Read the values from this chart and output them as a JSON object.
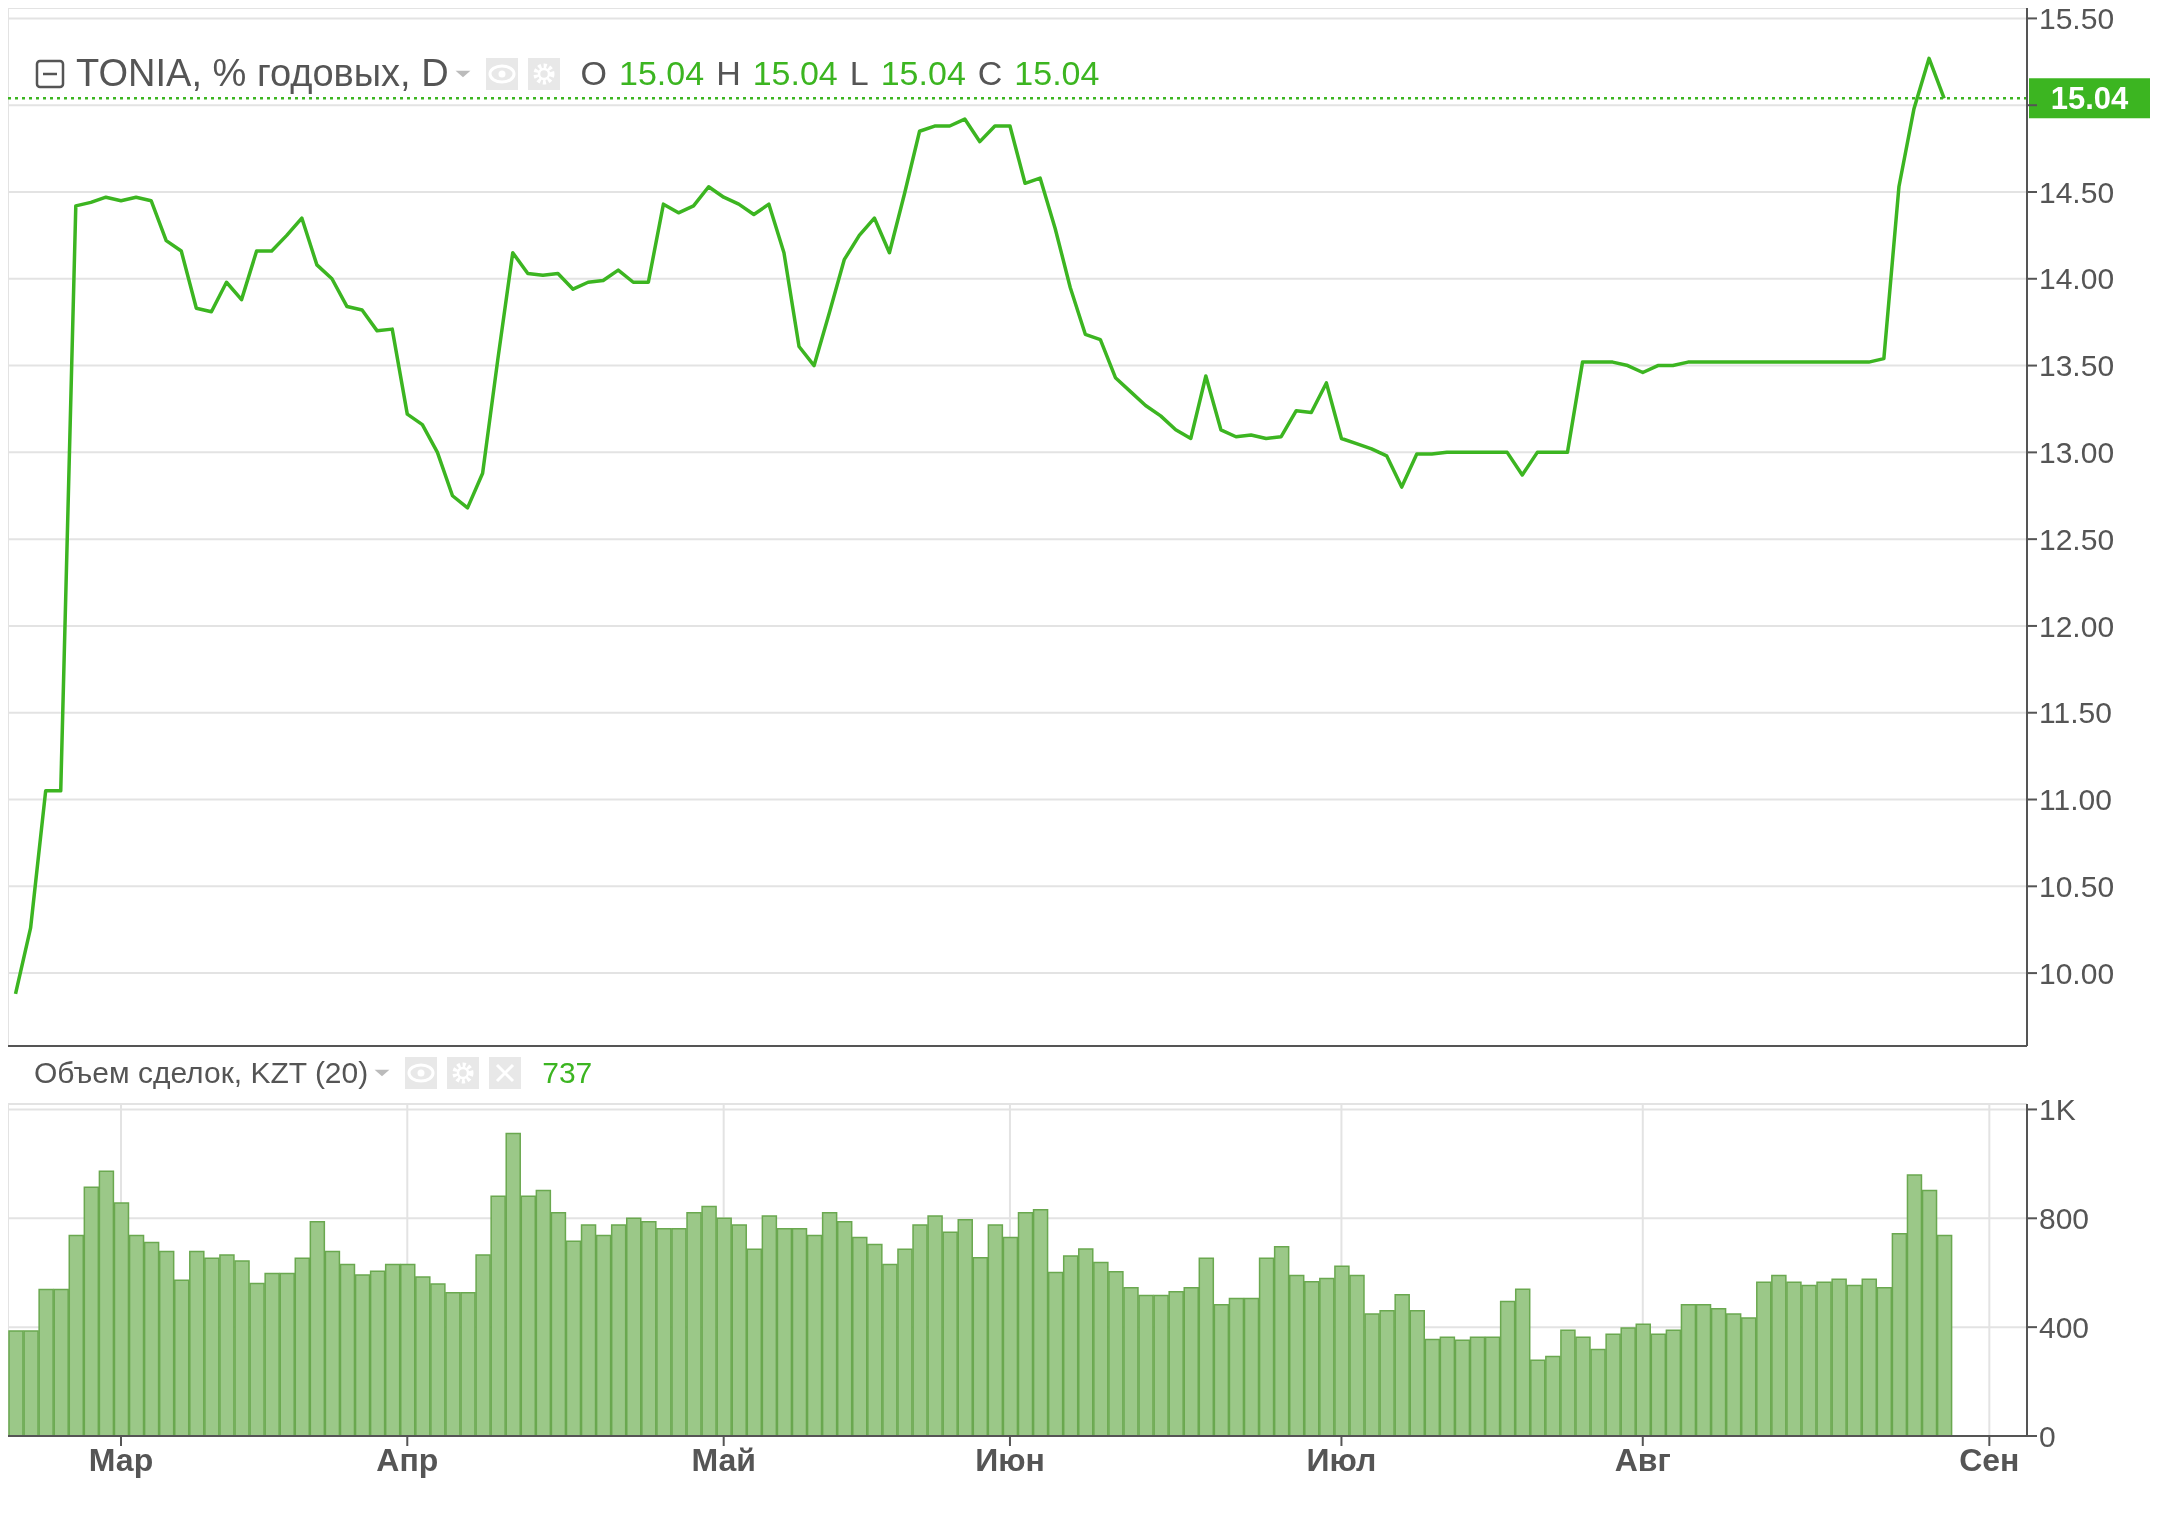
{
  "chart_data": [
    {
      "type": "line",
      "title": "TONIA, % годовых, D",
      "annotations": [
        "O 15.04 H 15.04 L 15.04 C 15.04"
      ],
      "categories": [
        null,
        null,
        null,
        null,
        null,
        null,
        null,
        null,
        null,
        null,
        null,
        null,
        null,
        null,
        null,
        null,
        null,
        null,
        null,
        null,
        null,
        null,
        null,
        null,
        null,
        null,
        null,
        null,
        null,
        null,
        null,
        null,
        null,
        null,
        null,
        null,
        null,
        null,
        null,
        null,
        null,
        null,
        null,
        null,
        null,
        null,
        null,
        null,
        null,
        null,
        null,
        null,
        null,
        null,
        null,
        null,
        null,
        null,
        null,
        null,
        null,
        null,
        null,
        null,
        null,
        null,
        null,
        null,
        null,
        null,
        null,
        null,
        null,
        null,
        null,
        null,
        null,
        null,
        null,
        null,
        null,
        null,
        null,
        null,
        null,
        null,
        null,
        null,
        null,
        null,
        null,
        null,
        null,
        null,
        null,
        null,
        null,
        null,
        null,
        null,
        null,
        null,
        null,
        null,
        null,
        null,
        null,
        null,
        null,
        null,
        null,
        null,
        null,
        null,
        null,
        null,
        null,
        null,
        null,
        null,
        null,
        null,
        null,
        null,
        null,
        null,
        null,
        null,
        null,
        null,
        null,
        null,
        null,
        null
      ],
      "series": [
        {
          "color": "#3cb521",
          "values": [
            9.88,
            10.26,
            11.05,
            11.05,
            14.42,
            14.44,
            14.47,
            14.45,
            14.47,
            14.45,
            14.22,
            14.16,
            13.83,
            13.81,
            13.98,
            13.88,
            14.16,
            14.16,
            14.25,
            14.35,
            14.08,
            14.0,
            13.84,
            13.82,
            13.7,
            13.71,
            13.22,
            13.16,
            13.0,
            12.75,
            12.68,
            12.88,
            13.53,
            14.15,
            14.03,
            14.02,
            14.03,
            13.94,
            13.98,
            13.99,
            14.05,
            13.98,
            13.98,
            14.43,
            14.38,
            14.42,
            14.53,
            14.47,
            14.43,
            14.37,
            14.43,
            14.15,
            13.61,
            13.5,
            13.8,
            14.11,
            14.25,
            14.35,
            14.15,
            14.49,
            14.85,
            14.88,
            14.88,
            14.92,
            14.79,
            14.88,
            14.88,
            14.55,
            14.58,
            14.29,
            13.95,
            13.68,
            13.65,
            13.43,
            13.35,
            13.27,
            13.21,
            13.13,
            13.08,
            13.44,
            13.13,
            13.09,
            13.1,
            13.08,
            13.09,
            13.24,
            13.23,
            13.4,
            13.08,
            13.05,
            13.02,
            12.98,
            12.8,
            12.99,
            12.99,
            13.0,
            13.0,
            13.0,
            13.0,
            13.0,
            12.87,
            13.0,
            13.0,
            13.0,
            13.52,
            13.52,
            13.52,
            13.5,
            13.46,
            13.5,
            13.5,
            13.52,
            13.52,
            13.52,
            13.52,
            13.52,
            13.52,
            13.52,
            13.52,
            13.52,
            13.52,
            13.52,
            13.52,
            13.52,
            13.54,
            14.53,
            14.98,
            15.27,
            15.04,
            null,
            null,
            null,
            null,
            null
          ]
        }
      ],
      "ylim": [
        9.58,
        15.56
      ],
      "yticks": [
        {
          "value": 10,
          "label": "10.00"
        },
        {
          "value": 10.5,
          "label": "10.50"
        },
        {
          "value": 11,
          "label": "11.00"
        },
        {
          "value": 11.5,
          "label": "11.50"
        },
        {
          "value": 12,
          "label": "12.00"
        },
        {
          "value": 12.5,
          "label": "12.50"
        },
        {
          "value": 13,
          "label": "13.00"
        },
        {
          "value": 13.5,
          "label": "13.50"
        },
        {
          "value": 14,
          "label": "14.00"
        },
        {
          "value": 14.5,
          "label": "14.50"
        },
        {
          "value": 15,
          "label": null
        },
        {
          "value": 15.5,
          "label": "15.50"
        }
      ],
      "ref_lines": [
        {
          "axis": "y",
          "value": 15.04,
          "label": "15.04",
          "color": "#3cb521",
          "line_style": "dotted"
        }
      ],
      "grid": true,
      "marker": "none",
      "line_style": "solid",
      "tick_labels": "y"
    },
    {
      "type": "bar",
      "title": "Объем сделок, KZT (20)",
      "annotations": [
        "737"
      ],
      "categories": [
        null,
        null,
        null,
        null,
        null,
        null,
        null,
        "Мар",
        null,
        null,
        null,
        null,
        null,
        null,
        null,
        null,
        null,
        null,
        null,
        null,
        null,
        null,
        null,
        null,
        null,
        null,
        "Апр",
        null,
        null,
        null,
        null,
        null,
        null,
        null,
        null,
        null,
        null,
        null,
        null,
        null,
        null,
        null,
        null,
        null,
        null,
        null,
        null,
        "Май",
        null,
        null,
        null,
        null,
        null,
        null,
        null,
        null,
        null,
        null,
        null,
        null,
        null,
        null,
        null,
        null,
        null,
        null,
        "Июн",
        null,
        null,
        null,
        null,
        null,
        null,
        null,
        null,
        null,
        null,
        null,
        null,
        null,
        null,
        null,
        null,
        null,
        null,
        null,
        null,
        null,
        "Июл",
        null,
        null,
        null,
        null,
        null,
        null,
        null,
        null,
        null,
        null,
        null,
        null,
        null,
        null,
        null,
        null,
        null,
        null,
        null,
        "Авг",
        null,
        null,
        null,
        null,
        null,
        null,
        null,
        null,
        null,
        null,
        null,
        null,
        null,
        null,
        null,
        null,
        null,
        null,
        null,
        null,
        null,
        null,
        "Сен",
        null,
        null
      ],
      "series": [
        {
          "color": "#9bc888",
          "values": [
            386,
            386,
            538,
            538,
            737,
            914,
            973,
            856,
            737,
            711,
            678,
            572,
            678,
            653,
            665,
            643,
            560,
            597,
            597,
            653,
            787,
            678,
            630,
            592,
            605,
            630,
            630,
            584,
            559,
            526,
            526,
            665,
            881,
            1112,
            881,
            902,
            820,
            716,
            775,
            737,
            775,
            800,
            787,
            762,
            762,
            820,
            843,
            800,
            775,
            686,
            808,
            762,
            762,
            737,
            820,
            787,
            729,
            704,
            630,
            686,
            775,
            808,
            749,
            795,
            655,
            775,
            729,
            820,
            831,
            601,
            661,
            687,
            638,
            604,
            545,
            516,
            516,
            530,
            545,
            653,
            482,
            505,
            505,
            653,
            695,
            590,
            567,
            579,
            624,
            590,
            448,
            460,
            519,
            460,
            355,
            363,
            352,
            363,
            363,
            494,
            539,
            278,
            292,
            389,
            363,
            318,
            374,
            397,
            411,
            374,
            389,
            482,
            482,
            468,
            448,
            434,
            565,
            590,
            565,
            553,
            565,
            576,
            553,
            576,
            545,
            743,
            959,
            902,
            737,
            null,
            null,
            null,
            null,
            null
          ]
        }
      ],
      "ylim": [
        0,
        1220
      ],
      "yticks": [
        0,
        400,
        800,
        {
          "value": 1200,
          "label": "1K"
        }
      ],
      "grid": true
    }
  ]
}
